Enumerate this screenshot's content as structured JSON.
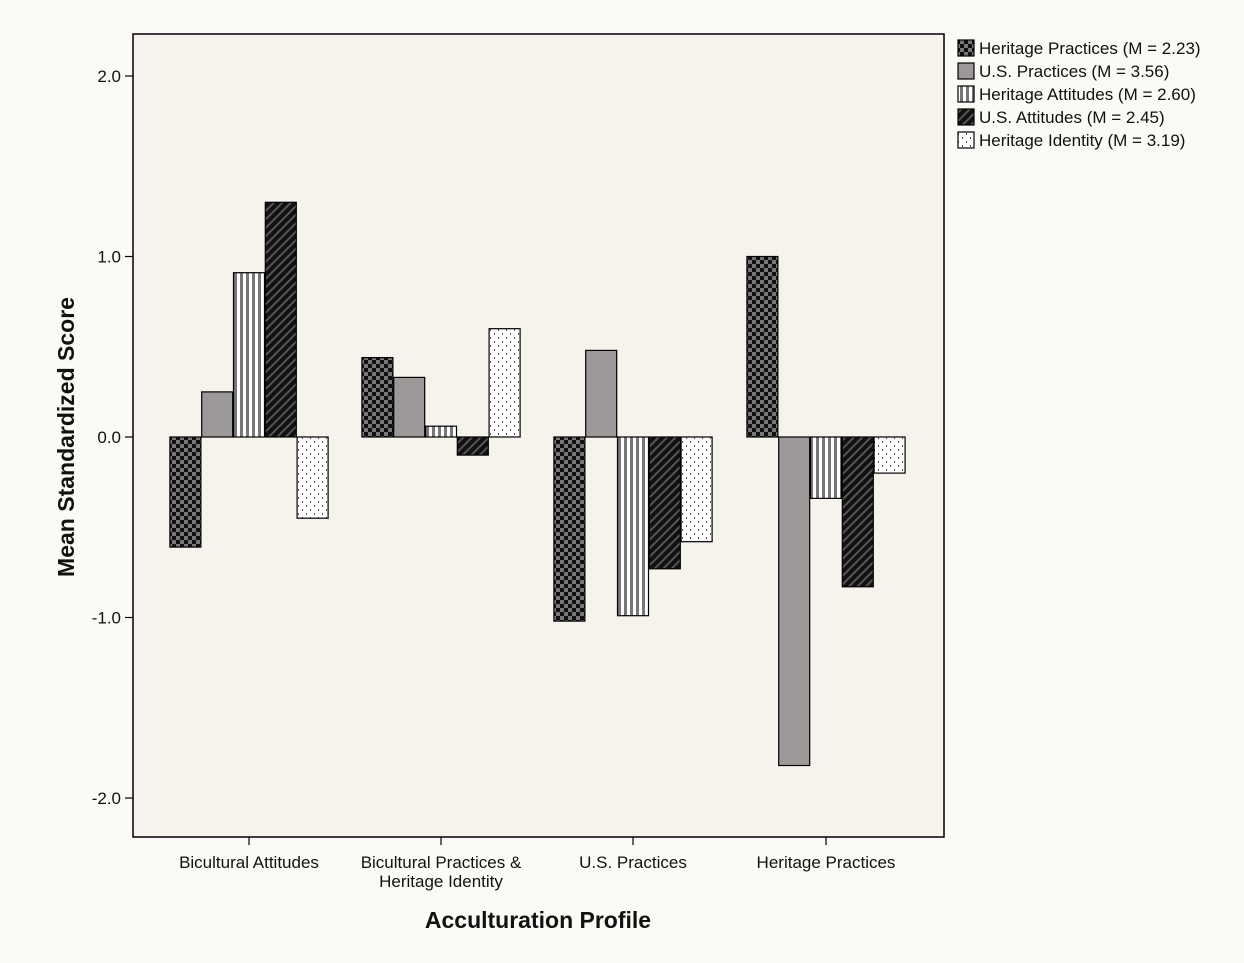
{
  "chart_data": {
    "type": "bar",
    "title": "",
    "xlabel": "Acculturation Profile",
    "ylabel": "Mean Standardized Score",
    "ylim": [
      -2.2,
      2.2
    ],
    "yticks": [
      2.0,
      1.0,
      0.0,
      -1.0,
      -2.0
    ],
    "ytick_labels": [
      "2.0",
      "1.0",
      "0.0",
      "-1.0",
      "-2.0"
    ],
    "categories": [
      [
        "Bicultural Attitudes"
      ],
      [
        "Bicultural Practices &",
        "Heritage Identity"
      ],
      [
        "U.S. Practices"
      ],
      [
        "Heritage Practices"
      ]
    ],
    "series": [
      {
        "name": "Heritage Practices (M = 2.23)",
        "values": [
          -0.61,
          0.44,
          -1.02,
          1.0
        ],
        "pattern": "checker"
      },
      {
        "name": "U.S. Practices (M = 3.56)",
        "values": [
          0.25,
          0.33,
          0.48,
          -1.82
        ],
        "pattern": "gray"
      },
      {
        "name": "Heritage Attitudes (M = 2.60)",
        "values": [
          0.91,
          0.06,
          -0.99,
          -0.34
        ],
        "pattern": "vlines"
      },
      {
        "name": "U.S. Attitudes (M = 2.45)",
        "values": [
          1.3,
          -0.1,
          -0.73,
          -0.83
        ],
        "pattern": "diag"
      },
      {
        "name": "Heritage Identity (M = 3.19)",
        "values": [
          -0.45,
          0.6,
          -0.58,
          -0.2
        ],
        "pattern": "dots"
      }
    ],
    "grid": false,
    "legend_position": "right",
    "colors": {
      "plot_background": "#f6f3ed",
      "page_background": "#fbfaf7",
      "bar_gray": "#9c9898",
      "ink": "#000000"
    }
  }
}
